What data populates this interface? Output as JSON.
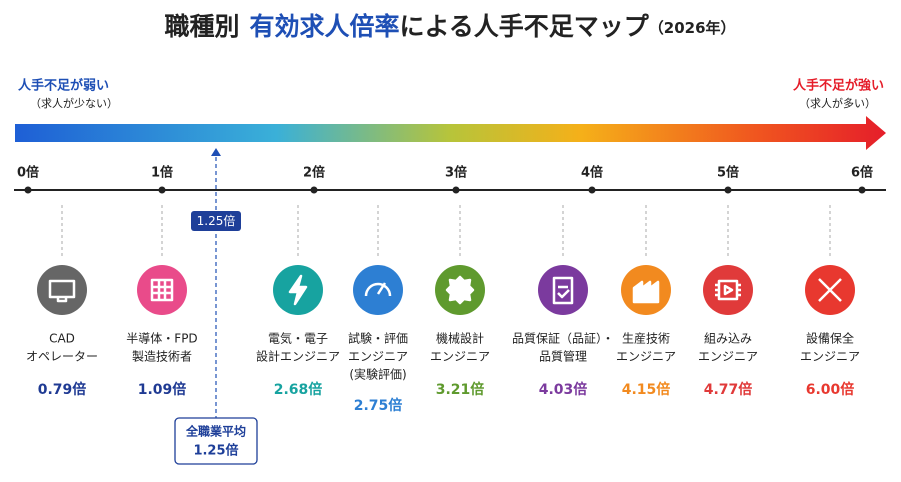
{
  "title": {
    "prefix": "職種別",
    "highlight": "有効求人倍率",
    "suffix": "による人手不足マップ",
    "year": "（2026年）"
  },
  "scale": {
    "low": {
      "label": "人手不足が弱い",
      "note": "（求人が少ない）"
    },
    "high": {
      "label": "人手不足が強い",
      "note": "（求人が多い）"
    },
    "ticks": [
      "0倍",
      "1倍",
      "2倍",
      "3倍",
      "4倍",
      "5倍",
      "6倍"
    ]
  },
  "average": {
    "marker": "1.25倍",
    "label": "全職業平均",
    "value": "1.25倍"
  },
  "jobs": [
    {
      "name": [
        "CAD",
        "オペレーター"
      ],
      "value": "0.79倍",
      "color": "#666666",
      "value_color": "#1f3a93"
    },
    {
      "name": [
        "半導体・FPD",
        "製造技術者"
      ],
      "value": "1.09倍",
      "color": "#e94b8a",
      "value_color": "#1f3a93"
    },
    {
      "name": [
        "電気・電子",
        "設計エンジニア"
      ],
      "value": "2.68倍",
      "color": "#17a3a0",
      "value_color": "#17a3a0"
    },
    {
      "name": [
        "試験・評価",
        "エンジニア",
        "(実験評価)"
      ],
      "value": "2.75倍",
      "color": "#2d7fd3",
      "value_color": "#2d7fd3"
    },
    {
      "name": [
        "機械設計",
        "エンジニア"
      ],
      "value": "3.21倍",
      "color": "#5f9a2e",
      "value_color": "#5f9a2e"
    },
    {
      "name": [
        "品質保証（品証）・",
        "品質管理"
      ],
      "value": "4.03倍",
      "color": "#7b3a9e",
      "value_color": "#7b3a9e"
    },
    {
      "name": [
        "生産技術",
        "エンジニア"
      ],
      "value": "4.15倍",
      "color": "#f28a1f",
      "value_color": "#f28a1f"
    },
    {
      "name": [
        "組み込み",
        "エンジニア"
      ],
      "value": "4.77倍",
      "color": "#e03a3a",
      "value_color": "#e03a3a"
    },
    {
      "name": [
        "設備保全",
        "エンジニア"
      ],
      "value": "6.00倍",
      "color": "#e8382f",
      "value_color": "#e8382f"
    }
  ]
}
